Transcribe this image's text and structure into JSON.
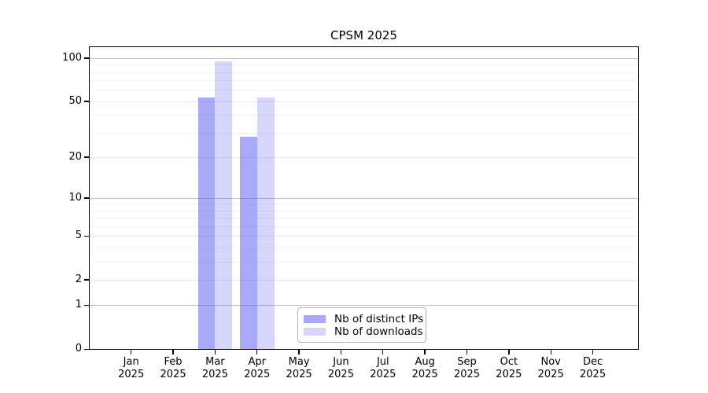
{
  "chart_data": {
    "type": "bar",
    "title": "CPSM 2025",
    "x_tick_year": "2025",
    "categories": [
      "Jan",
      "Feb",
      "Mar",
      "Apr",
      "May",
      "Jun",
      "Jul",
      "Aug",
      "Sep",
      "Oct",
      "Nov",
      "Dec"
    ],
    "series": [
      {
        "name": "Nb of distinct IPs",
        "color": "#6363f58c",
        "values": [
          0,
          0,
          53,
          28,
          0,
          0,
          0,
          0,
          0,
          0,
          0,
          0
        ]
      },
      {
        "name": "Nb of downloads",
        "color": "#7878f54d",
        "values": [
          0,
          0,
          95,
          53,
          0,
          0,
          0,
          0,
          0,
          0,
          0,
          0
        ]
      }
    ],
    "yscale": "log1p",
    "ylim": [
      0,
      119
    ],
    "yticks": [
      0,
      1,
      2,
      5,
      10,
      20,
      50,
      100
    ],
    "minor_yticks": [
      3,
      4,
      6,
      7,
      8,
      9,
      30,
      40,
      60,
      70,
      80,
      90
    ],
    "grid": true,
    "legend_position": "lower center"
  },
  "colors": {
    "background": "#ffffff",
    "spine": "#000000",
    "grid_power10": "#c2c2c2",
    "grid_major": "#e8e8e8",
    "grid_minor": "#f3f3f3",
    "legend_border": "#b3b3b3",
    "text": "#000000"
  }
}
